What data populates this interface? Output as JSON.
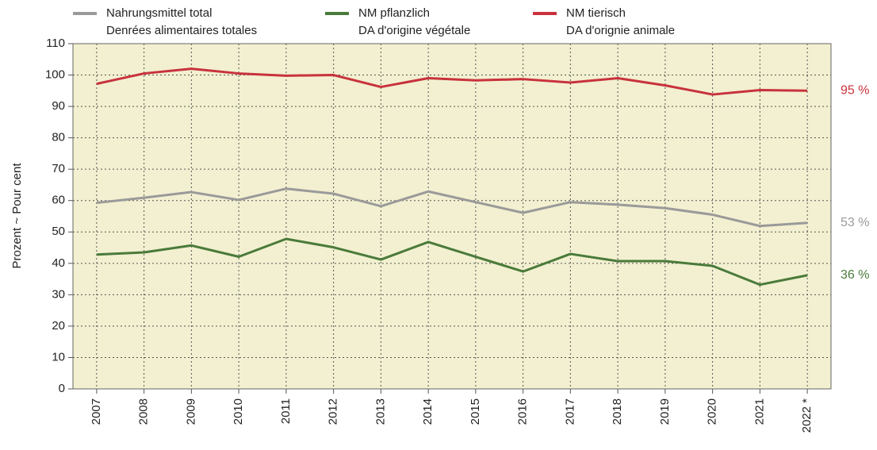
{
  "chart_data": {
    "type": "line",
    "ylabel": "Prozent  ~  Pour cent",
    "categories": [
      "2007",
      "2008",
      "2009",
      "2010",
      "2011",
      "2012",
      "2013",
      "2014",
      "2015",
      "2016",
      "2017",
      "2018",
      "2019",
      "2020",
      "2021",
      "2022 *"
    ],
    "series": [
      {
        "name": [
          "Nahrungsmittel total",
          "Denrées alimentaires totales"
        ],
        "color": "#9a9a9a",
        "values": [
          59.3,
          60.9,
          62.7,
          60.2,
          63.8,
          62.2,
          58.2,
          62.9,
          59.5,
          56.1,
          59.5,
          58.7,
          57.6,
          55.5,
          51.9,
          52.9
        ],
        "end_label": "53 %"
      },
      {
        "name": [
          "NM pflanzlich",
          "DA d'origine végétale"
        ],
        "color": "#4a7a3a",
        "values": [
          42.8,
          43.5,
          45.7,
          42.1,
          47.8,
          45.1,
          41.2,
          46.8,
          42.1,
          37.4,
          43.0,
          40.7,
          40.7,
          39.2,
          33.2,
          36.2
        ],
        "end_label": "36 %"
      },
      {
        "name": [
          "NM tierisch",
          "DA d'orignie animale"
        ],
        "color": "#c8323c",
        "values": [
          97.2,
          100.5,
          102.0,
          100.5,
          99.8,
          100.0,
          96.2,
          99.0,
          98.3,
          98.7,
          97.6,
          99.0,
          96.7,
          93.8,
          95.2,
          95.0
        ],
        "end_label": "95 %"
      }
    ],
    "ylim": [
      0,
      110
    ],
    "yticks": [
      0,
      10,
      20,
      30,
      40,
      50,
      60,
      70,
      80,
      90,
      100,
      110
    ],
    "grid": true,
    "legend": "top"
  }
}
